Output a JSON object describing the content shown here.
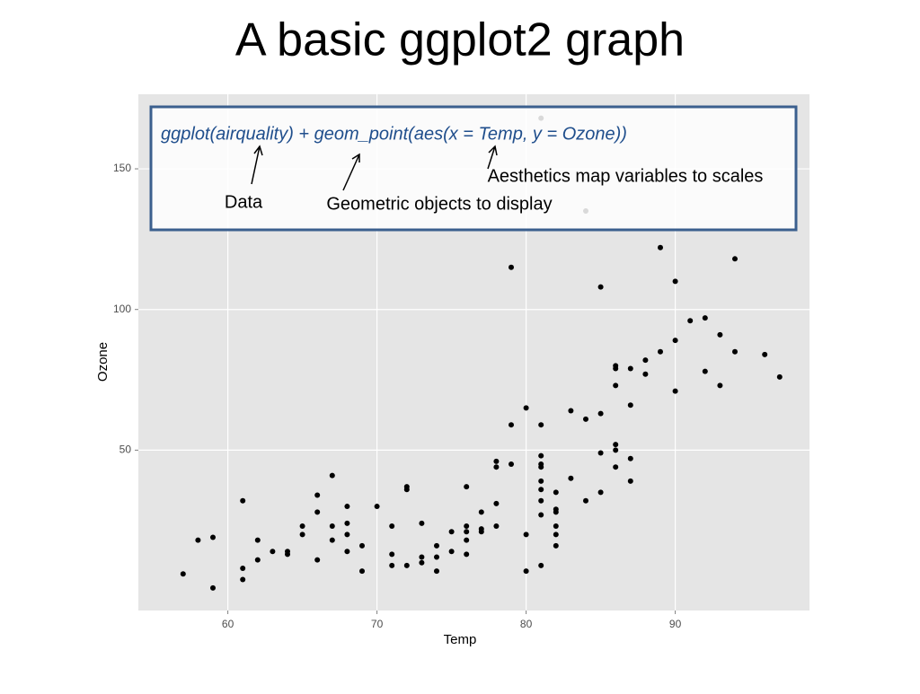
{
  "chart_data": {
    "type": "scatter",
    "title": "A basic ggplot2 graph",
    "x_label": "Temp",
    "y_label": "Ozone",
    "annotations": {
      "code": "ggplot(airquality) + geom_point(aes(x = Temp, y = Ozone))",
      "data": "Data",
      "geom": "Geometric objects to display",
      "aes": "Aesthetics map variables to scales"
    },
    "xlim": [
      54,
      99
    ],
    "ylim": [
      -7,
      176.5
    ],
    "xticks": [
      60,
      70,
      80,
      90
    ],
    "yticks": [
      50,
      100,
      150
    ],
    "grid": true,
    "color": "#000000",
    "series": [
      {
        "name": "Ozone",
        "x": [
          57,
          58,
          59,
          59,
          61,
          61,
          61,
          62,
          62,
          63,
          64,
          64,
          65,
          65,
          66,
          66,
          66,
          67,
          67,
          67,
          68,
          68,
          68,
          68,
          69,
          69,
          70,
          71,
          71,
          71,
          72,
          72,
          72,
          73,
          73,
          73,
          74,
          74,
          74,
          75,
          75,
          76,
          76,
          76,
          76,
          76,
          77,
          77,
          77,
          78,
          78,
          78,
          78,
          79,
          79,
          79,
          80,
          80,
          80,
          81,
          81,
          81,
          81,
          81,
          81,
          81,
          81,
          81,
          81,
          82,
          82,
          82,
          82,
          82,
          82,
          83,
          83,
          84,
          84,
          84,
          85,
          85,
          85,
          85,
          86,
          86,
          86,
          86,
          86,
          86,
          87,
          87,
          87,
          87,
          88,
          88,
          89,
          89,
          90,
          90,
          90,
          91,
          92,
          92,
          93,
          93,
          94,
          94,
          96,
          97
        ],
        "y": [
          6,
          18,
          19,
          1,
          32,
          8,
          4,
          18,
          11,
          14,
          14,
          13,
          23,
          20,
          34,
          28,
          11,
          41,
          23,
          18,
          30,
          24,
          20,
          14,
          16,
          7,
          30,
          23,
          13,
          9,
          37,
          36,
          9,
          24,
          12,
          10,
          16,
          12,
          7,
          21,
          14,
          37,
          23,
          21,
          18,
          13,
          28,
          22,
          21,
          46,
          44,
          31,
          23,
          115,
          59,
          45,
          65,
          20,
          7,
          168,
          59,
          48,
          45,
          44,
          39,
          36,
          32,
          27,
          9,
          35,
          29,
          28,
          23,
          20,
          16,
          64,
          40,
          135,
          61,
          32,
          108,
          63,
          49,
          35,
          80,
          79,
          73,
          52,
          50,
          44,
          79,
          66,
          47,
          39,
          82,
          77,
          122,
          85,
          110,
          89,
          71,
          96,
          97,
          78,
          91,
          73,
          118,
          85,
          84,
          76
        ]
      }
    ]
  }
}
